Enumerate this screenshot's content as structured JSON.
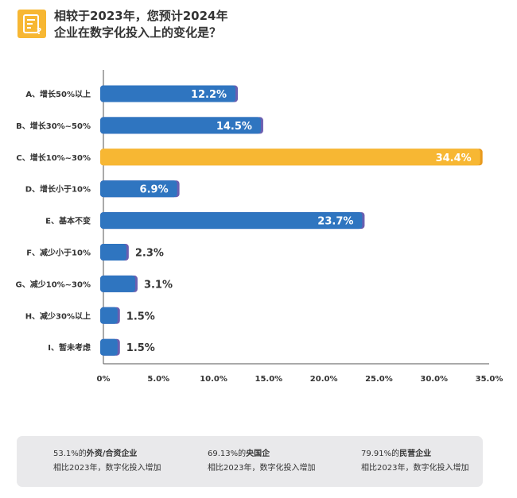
{
  "header": {
    "line1": "相较于2023年，您预计2024年",
    "line2": "企业在数字化投入上的变化是？"
  },
  "chart_data": {
    "type": "bar",
    "orientation": "horizontal",
    "categories": [
      "A、增长50%以上",
      "B、增长30%~50%",
      "C、增长10%~30%",
      "D、增长小于10%",
      "E、基本不变",
      "F、减少小于10%",
      "G、减少10%~30%",
      "H、减少30%以上",
      "I、暂未考虑"
    ],
    "values": [
      12.2,
      14.5,
      34.4,
      6.9,
      23.7,
      2.3,
      3.1,
      1.5,
      1.5
    ],
    "labels": [
      "12.2%",
      "14.5%",
      "34.4%",
      "6.9%",
      "23.7%",
      "2.3%",
      "3.1%",
      "1.5%",
      "1.5%"
    ],
    "highlight_index": 2,
    "xlim": [
      0,
      35
    ],
    "xticks": [
      "0%",
      "5.0%",
      "10.0%",
      "15.0%",
      "20.0%",
      "25.0%",
      "30.0%",
      "35.0%"
    ],
    "colors": {
      "bar": "#2f75c0",
      "bar_cap": "#6b5fb0",
      "highlight": "#f7b733",
      "highlight_cap": "#e89a1e"
    }
  },
  "notes": [
    {
      "pct": "53.1%的",
      "group": "外资/合资企业",
      "desc": "相比2023年，数字化投入增加"
    },
    {
      "pct": "69.13%的",
      "group": "央国企",
      "desc": "相比2023年，数字化投入增加"
    },
    {
      "pct": "79.91%的",
      "group": "民营企业",
      "desc": "相比2023年，数字化投入增加"
    }
  ]
}
